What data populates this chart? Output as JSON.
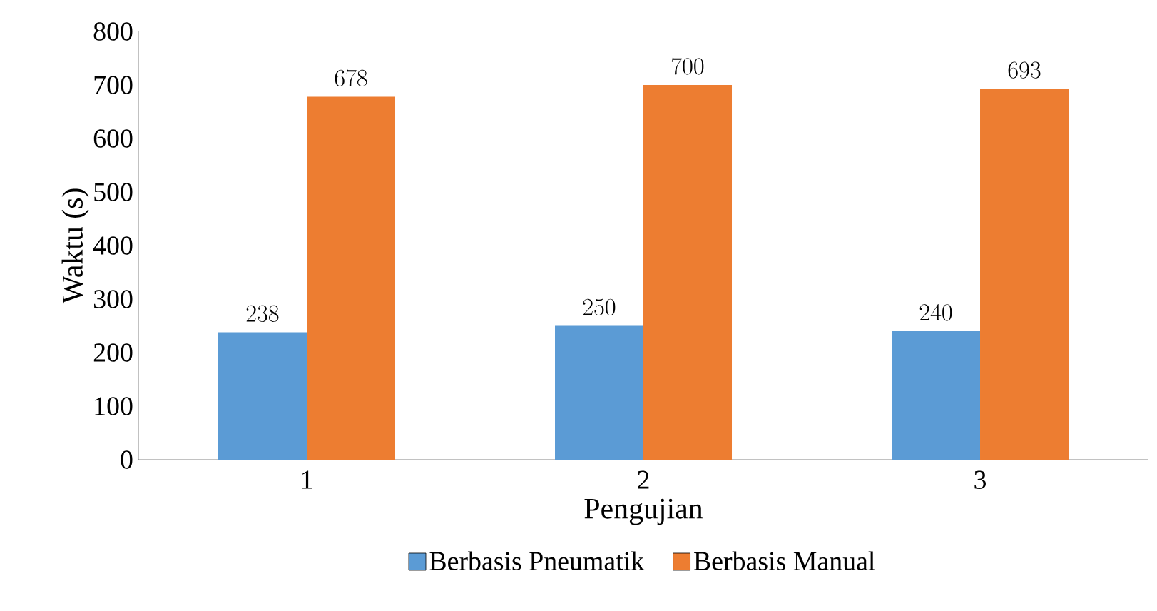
{
  "chart_data": {
    "type": "bar",
    "xlabel": "Pengujian",
    "ylabel": "Waktu (s)",
    "categories": [
      "1",
      "2",
      "3"
    ],
    "series": [
      {
        "name": "Berbasis Pneumatik",
        "color": "#5b9bd5",
        "values": [
          238,
          250,
          240
        ]
      },
      {
        "name": "Berbasis Manual",
        "color": "#ed7d31",
        "values": [
          678,
          700,
          693
        ]
      }
    ],
    "ylim": [
      0,
      800
    ],
    "yticks": [
      0,
      100,
      200,
      300,
      400,
      500,
      600,
      700,
      800
    ],
    "data_labels": true,
    "legend": "bottom",
    "grid": false
  }
}
